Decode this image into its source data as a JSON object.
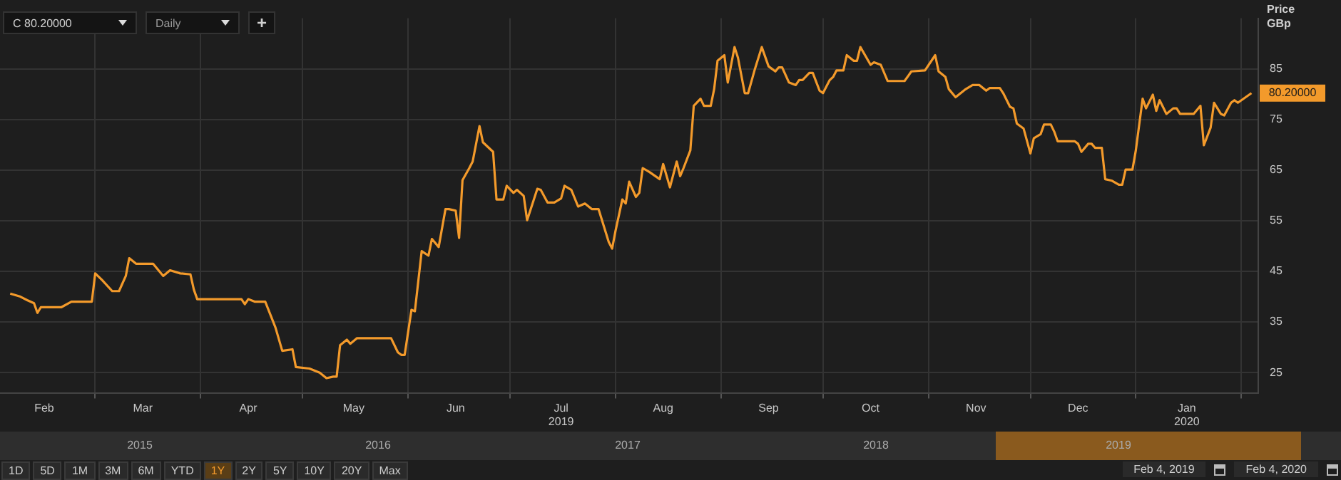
{
  "chart_data": {
    "type": "line",
    "ylabel": "Price GBp",
    "legend": false,
    "grid": true,
    "xlim": [
      "2019-02-01",
      "2020-02-06"
    ],
    "xticks": [
      {
        "value": "2019-02-14",
        "label": "Feb"
      },
      {
        "value": "2019-03-01",
        "label": null
      },
      {
        "value": "2019-03-15",
        "label": "Mar"
      },
      {
        "value": "2019-04-01",
        "label": null
      },
      {
        "value": "2019-04-15",
        "label": "Apr"
      },
      {
        "value": "2019-05-01",
        "label": null
      },
      {
        "value": "2019-05-16",
        "label": "May"
      },
      {
        "value": "2019-06-01",
        "label": null
      },
      {
        "value": "2019-06-15",
        "label": "Jun"
      },
      {
        "value": "2019-07-01",
        "label": null
      },
      {
        "value": "2019-07-16",
        "label": "Jul\n2019"
      },
      {
        "value": "2019-08-01",
        "label": null
      },
      {
        "value": "2019-08-15",
        "label": "Aug"
      },
      {
        "value": "2019-09-01",
        "label": null
      },
      {
        "value": "2019-09-15",
        "label": "Sep"
      },
      {
        "value": "2019-10-01",
        "label": null
      },
      {
        "value": "2019-10-15",
        "label": "Oct"
      },
      {
        "value": "2019-11-01",
        "label": null
      },
      {
        "value": "2019-11-15",
        "label": "Nov"
      },
      {
        "value": "2019-12-01",
        "label": null
      },
      {
        "value": "2019-12-15",
        "label": "Dec"
      },
      {
        "value": "2020-01-01",
        "label": null
      },
      {
        "value": "2020-01-16",
        "label": "Jan\n2020"
      },
      {
        "value": "2020-02-01",
        "label": null
      }
    ],
    "ylim": [
      21,
      95
    ],
    "yticks": [
      25,
      35,
      45,
      55,
      65,
      75,
      85
    ],
    "annotations": [
      "C 80.20000",
      "Daily",
      "+",
      "80.20000",
      "2015",
      "2016",
      "2017",
      "2018",
      "2019",
      "1D",
      "5D",
      "1M",
      "3M",
      "6M",
      "YTD",
      "1Y",
      "2Y",
      "5Y",
      "10Y",
      "20Y",
      "Max",
      "Feb 4, 2019",
      "Feb 4, 2020"
    ],
    "series": [
      {
        "color": "#f39a2b",
        "x": [
          "2019-02-04",
          "2019-02-07",
          "2019-02-09",
          "2019-02-11",
          "2019-02-12",
          "2019-02-13",
          "2019-02-19",
          "2019-02-22",
          "2019-02-28",
          "2019-03-01",
          "2019-03-03",
          "2019-03-06",
          "2019-03-08",
          "2019-03-10",
          "2019-03-11",
          "2019-03-13",
          "2019-03-18",
          "2019-03-21",
          "2019-03-23",
          "2019-03-26",
          "2019-03-29",
          "2019-03-30",
          "2019-03-31",
          "2019-04-13",
          "2019-04-14",
          "2019-04-15",
          "2019-04-17",
          "2019-04-20",
          "2019-04-23",
          "2019-04-25",
          "2019-04-28",
          "2019-04-29",
          "2019-05-03",
          "2019-05-06",
          "2019-05-08",
          "2019-05-10",
          "2019-05-11",
          "2019-05-12",
          "2019-05-14",
          "2019-05-15",
          "2019-05-17",
          "2019-05-27",
          "2019-05-29",
          "2019-05-30",
          "2019-05-31",
          "2019-06-02",
          "2019-06-03",
          "2019-06-05",
          "2019-06-07",
          "2019-06-08",
          "2019-06-10",
          "2019-06-12",
          "2019-06-13",
          "2019-06-15",
          "2019-06-16",
          "2019-06-17",
          "2019-06-19",
          "2019-06-20",
          "2019-06-22",
          "2019-06-23",
          "2019-06-26",
          "2019-06-27",
          "2019-06-29",
          "2019-06-30",
          "2019-07-02",
          "2019-07-03",
          "2019-07-05",
          "2019-07-06",
          "2019-07-09",
          "2019-07-10",
          "2019-07-12",
          "2019-07-14",
          "2019-07-16",
          "2019-07-17",
          "2019-07-19",
          "2019-07-21",
          "2019-07-23",
          "2019-07-25",
          "2019-07-27",
          "2019-07-30",
          "2019-07-31",
          "2019-08-01",
          "2019-08-03",
          "2019-08-04",
          "2019-08-05",
          "2019-08-07",
          "2019-08-08",
          "2019-08-09",
          "2019-08-11",
          "2019-08-14",
          "2019-08-15",
          "2019-08-17",
          "2019-08-19",
          "2019-08-20",
          "2019-08-21",
          "2019-08-23",
          "2019-08-24",
          "2019-08-26",
          "2019-08-27",
          "2019-08-29",
          "2019-08-30",
          "2019-08-31",
          "2019-09-02",
          "2019-09-03",
          "2019-09-05",
          "2019-09-06",
          "2019-09-08",
          "2019-09-09",
          "2019-09-11",
          "2019-09-13",
          "2019-09-15",
          "2019-09-17",
          "2019-09-18",
          "2019-09-19",
          "2019-09-21",
          "2019-09-23",
          "2019-09-24",
          "2019-09-25",
          "2019-09-27",
          "2019-09-28",
          "2019-09-30",
          "2019-10-01",
          "2019-10-03",
          "2019-10-04",
          "2019-10-05",
          "2019-10-07",
          "2019-10-08",
          "2019-10-10",
          "2019-10-11",
          "2019-10-12",
          "2019-10-15",
          "2019-10-16",
          "2019-10-18",
          "2019-10-20",
          "2019-10-25",
          "2019-10-27",
          "2019-10-31",
          "2019-11-03",
          "2019-11-04",
          "2019-11-06",
          "2019-11-07",
          "2019-11-09",
          "2019-11-12",
          "2019-11-14",
          "2019-11-16",
          "2019-11-18",
          "2019-11-19",
          "2019-11-22",
          "2019-11-23",
          "2019-11-25",
          "2019-11-26",
          "2019-11-27",
          "2019-11-29",
          "2019-12-01",
          "2019-12-02",
          "2019-12-04",
          "2019-12-05",
          "2019-12-07",
          "2019-12-08",
          "2019-12-09",
          "2019-12-14",
          "2019-12-15",
          "2019-12-16",
          "2019-12-18",
          "2019-12-19",
          "2019-12-20",
          "2019-12-22",
          "2019-12-23",
          "2019-12-25",
          "2019-12-27",
          "2019-12-28",
          "2019-12-29",
          "2019-12-31",
          "2020-01-01",
          "2020-01-03",
          "2020-01-04",
          "2020-01-06",
          "2020-01-07",
          "2020-01-08",
          "2020-01-10",
          "2020-01-12",
          "2020-01-13",
          "2020-01-14",
          "2020-01-18",
          "2020-01-20",
          "2020-01-21",
          "2020-01-23",
          "2020-01-24",
          "2020-01-26",
          "2020-01-27",
          "2020-01-29",
          "2020-01-30",
          "2020-01-31",
          "2020-02-04"
        ],
        "values": [
          40.6,
          40,
          39.3,
          38.7,
          36.8,
          37.9,
          37.9,
          39,
          39,
          44.6,
          43.3,
          41.1,
          41.1,
          44.1,
          47.6,
          46.5,
          46.5,
          44.1,
          45.2,
          44.6,
          44.4,
          41.4,
          39.5,
          39.5,
          38.5,
          39.5,
          39,
          39,
          33.9,
          29.3,
          29.6,
          26.1,
          25.8,
          25,
          23.9,
          24.2,
          24.2,
          30.4,
          31.5,
          30.7,
          31.8,
          31.8,
          29,
          28.5,
          28.5,
          37.4,
          37.1,
          49,
          48.1,
          51.4,
          49.8,
          57.3,
          57.3,
          57,
          51.6,
          63,
          65.4,
          66.7,
          73.7,
          70.5,
          68.6,
          59.2,
          59.2,
          61.9,
          60.5,
          61.1,
          59.9,
          55.1,
          61.3,
          61.1,
          58.6,
          58.6,
          59.4,
          61.9,
          61.1,
          57.8,
          58.4,
          57.3,
          57.3,
          50.8,
          49.5,
          53,
          59.2,
          58.4,
          62.7,
          59.7,
          60.5,
          65.4,
          64.6,
          63.2,
          66.2,
          61.6,
          66.7,
          63.8,
          65.4,
          68.9,
          77.7,
          79.1,
          77.7,
          77.7,
          81,
          86.6,
          87.7,
          82.3,
          89.3,
          87.2,
          80.2,
          80.2,
          85,
          89.3,
          85.5,
          84.5,
          85.3,
          85.3,
          82.3,
          81.8,
          82.8,
          82.8,
          84.2,
          84.2,
          80.7,
          80.2,
          82.8,
          83.4,
          84.7,
          84.7,
          87.7,
          86.6,
          86.6,
          89.3,
          85.8,
          86.3,
          85.8,
          82.6,
          82.6,
          84.5,
          84.7,
          87.7,
          84.5,
          83.4,
          81,
          79.4,
          81,
          81.8,
          81.8,
          80.7,
          81.2,
          81.2,
          80.2,
          77.5,
          77.2,
          74.2,
          73.2,
          68.3,
          71.3,
          72.1,
          74,
          74,
          72.6,
          70.7,
          70.7,
          70.2,
          68.6,
          70.2,
          70.2,
          69.4,
          69.4,
          63.2,
          62.9,
          62.1,
          62.1,
          65.1,
          65.1,
          68.9,
          79.1,
          77.2,
          79.9,
          76.7,
          78.8,
          76.1,
          77.2,
          77.2,
          76.1,
          76.1,
          77.7,
          69.9,
          73.4,
          78.3,
          76.1,
          75.8,
          78.3,
          78.8,
          78.3,
          80.2
        ]
      }
    ]
  }
}
